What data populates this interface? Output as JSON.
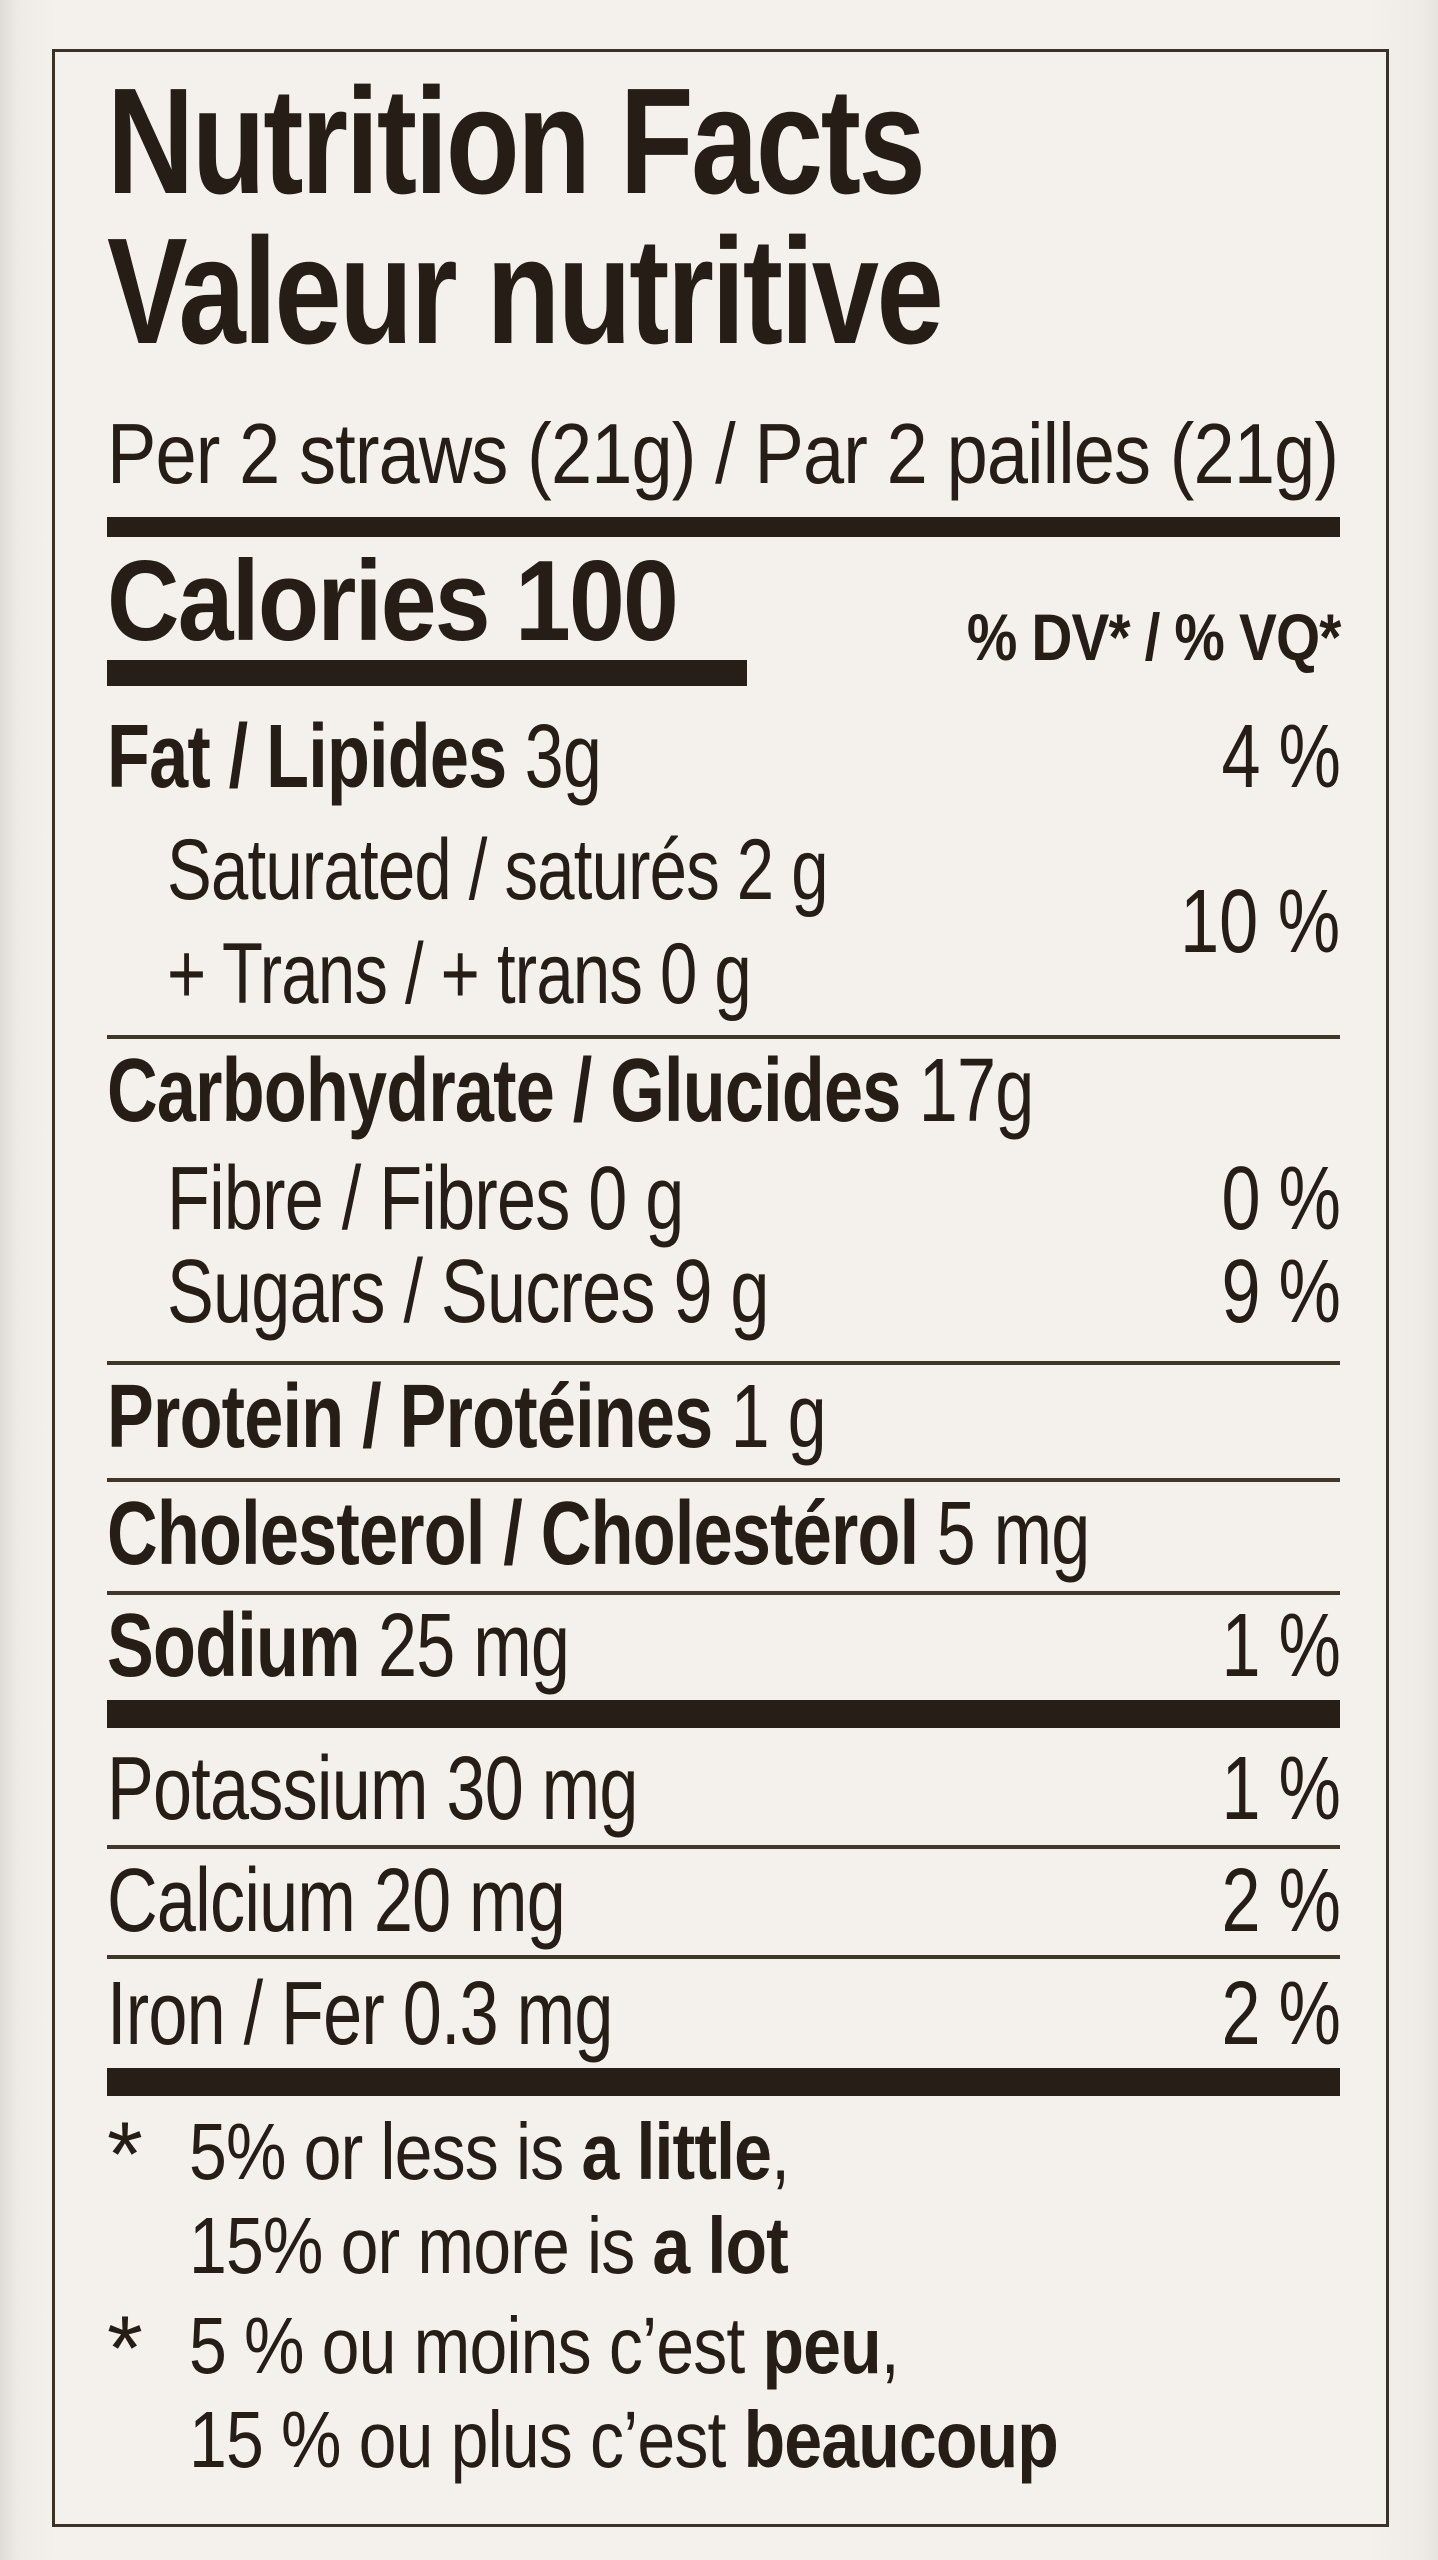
{
  "title": {
    "en": "Nutrition Facts",
    "fr": "Valeur nutritive"
  },
  "serving": {
    "text": "Per 2 straws (21g) / Par 2 pailles (21g)"
  },
  "calories": {
    "label": "Calories",
    "value": "100",
    "dv_header": "% DV* / % VQ*"
  },
  "rows": {
    "fat": {
      "name": "Fat / Lipides",
      "amount": "3g",
      "pct": "4 %"
    },
    "saturated": {
      "line1": "Saturated / saturés 2 g",
      "line2": "+ Trans / + trans 0 g",
      "pct": "10 %"
    },
    "carbohydrate": {
      "name": "Carbohydrate / Glucides",
      "amount": "17g",
      "pct": ""
    },
    "fibre": {
      "name": "Fibre / Fibres 0 g",
      "pct": "0 %"
    },
    "sugars": {
      "name": "Sugars / Sucres 9 g",
      "pct": "9 %"
    },
    "protein": {
      "name": "Protein / Protéines",
      "amount": "1 g",
      "pct": ""
    },
    "cholesterol": {
      "name": "Cholesterol / Cholestérol",
      "amount": "5 mg",
      "pct": ""
    },
    "sodium": {
      "name": "Sodium",
      "amount": "25 mg",
      "pct": "1 %"
    },
    "potassium": {
      "name": "Potassium 30 mg",
      "pct": "1 %"
    },
    "calcium": {
      "name": "Calcium 20 mg",
      "pct": "2 %"
    },
    "iron": {
      "name": "Iron / Fer 0.3 mg",
      "pct": "2 %"
    }
  },
  "footnotes": {
    "en": {
      "star": "*",
      "l1_pre": "5% or less is ",
      "l1_bold": "a little",
      "l1_post": ",",
      "l2_pre": "15% or more is ",
      "l2_bold": "a lot"
    },
    "fr": {
      "star": "*",
      "l1_pre": "5 % ou moins c’est ",
      "l1_bold": "peu",
      "l1_post": ",",
      "l2_pre": "15 % ou plus c’est ",
      "l2_bold": "beaucoup"
    }
  },
  "colors": {
    "paper": "#f4f1ec",
    "ink": "#251d16",
    "bar": "#261e17",
    "border": "#3a3129"
  }
}
